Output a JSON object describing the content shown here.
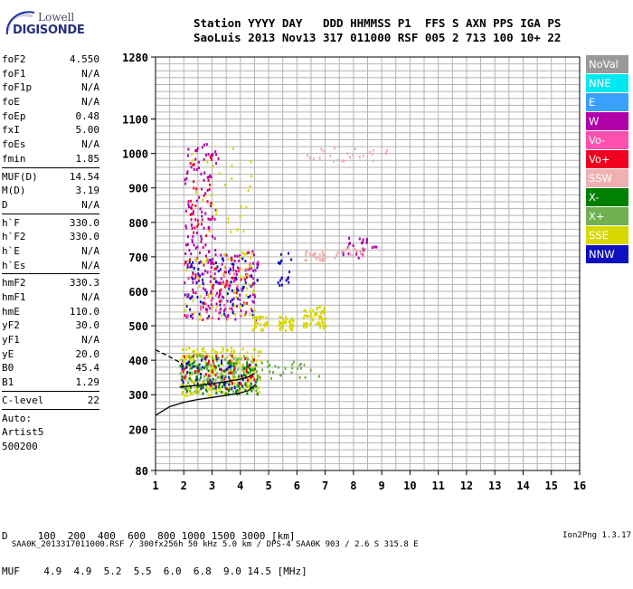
{
  "logo": {
    "line1": "Lowell",
    "line2": "DIGISONDE"
  },
  "header": {
    "row1": "Station YYYY DAY   DDD HHMMSS P1  FFS S AXN PPS IGA PS",
    "row2": "SaoLuis 2013 Nov13 317 011000 RSF 005 2 713 100 10+ 22"
  },
  "params": [
    {
      "name": "foF2",
      "value": "4.550"
    },
    {
      "name": "foF1",
      "value": "N/A"
    },
    {
      "name": "foF1p",
      "value": "N/A"
    },
    {
      "name": "foE",
      "value": "N/A"
    },
    {
      "name": "foEp",
      "value": "0.48"
    },
    {
      "name": "fxI",
      "value": "5.00"
    },
    {
      "name": "foEs",
      "value": "N/A"
    },
    {
      "name": "fmin",
      "value": "1.85"
    },
    {
      "name": "MUF(D)",
      "value": "14.54",
      "sep": true
    },
    {
      "name": "M(D)",
      "value": "3.19"
    },
    {
      "name": "D",
      "value": "N/A"
    },
    {
      "name": "h`F",
      "value": "330.0",
      "sep": true
    },
    {
      "name": "h`F2",
      "value": "330.0"
    },
    {
      "name": "h`E",
      "value": "N/A"
    },
    {
      "name": "h`Es",
      "value": "N/A"
    },
    {
      "name": "hmF2",
      "value": "330.3",
      "sep": true
    },
    {
      "name": "hmF1",
      "value": "N/A"
    },
    {
      "name": "hmE",
      "value": "110.0"
    },
    {
      "name": "yF2",
      "value": "30.0"
    },
    {
      "name": "yF1",
      "value": "N/A"
    },
    {
      "name": "yE",
      "value": "20.0"
    },
    {
      "name": "B0",
      "value": "45.4"
    },
    {
      "name": "B1",
      "value": "1.29"
    },
    {
      "name": "C-level",
      "value": "22",
      "sep": true
    }
  ],
  "auto": {
    "label": "Auto:",
    "artist": "Artist5",
    "version": "500200"
  },
  "legend": [
    {
      "label": "NoVal",
      "color": "#999999"
    },
    {
      "label": "NNE",
      "color": "#00e8f0"
    },
    {
      "label": "E",
      "color": "#3aa0ff"
    },
    {
      "label": "W",
      "color": "#b000a8"
    },
    {
      "label": "Vo-",
      "color": "#ff50b0"
    },
    {
      "label": "Vo+",
      "color": "#f00020"
    },
    {
      "label": "SSW",
      "color": "#f0b0b0"
    },
    {
      "label": "X-",
      "color": "#008000"
    },
    {
      "label": "X+",
      "color": "#70b050"
    },
    {
      "label": "SSE",
      "color": "#d8d800"
    },
    {
      "label": "NNW",
      "color": "#1010c0"
    }
  ],
  "bottom": {
    "d_line": "D     100  200  400  600  800 1000 1500 3000 [km]",
    "muf_line": "MUF    4.9  4.9  5.2  5.5  6.0  6.8  9.0 14.5 [MHz]"
  },
  "footer": {
    "text": "SAA0K_2013317011000.RSF / 300fx256h 50 kHz 5.0 km / DPS-4 SAA0K 903 / 2.6 S 315.8 E",
    "version": "Ion2Png 1.3.17"
  },
  "chart_data": {
    "type": "scatter",
    "title": "",
    "xlabel": "",
    "ylabel": "",
    "xlim": [
      1,
      16
    ],
    "ylim": [
      80,
      1280
    ],
    "xticks": [
      "1",
      "2",
      "3",
      "4",
      "5",
      "6",
      "7",
      "8",
      "9",
      "10",
      "11",
      "12",
      "13",
      "14",
      "15",
      "16"
    ],
    "yticks": [
      {
        "value": 80,
        "label": "80"
      },
      {
        "value": 200,
        "label": "200"
      },
      {
        "value": 300,
        "label": "300"
      },
      {
        "value": 400,
        "label": "400"
      },
      {
        "value": 500,
        "label": "500"
      },
      {
        "value": 600,
        "label": "600"
      },
      {
        "value": 700,
        "label": "700"
      },
      {
        "value": 800,
        "label": "800"
      },
      {
        "value": 900,
        "label": "900"
      },
      {
        "value": 1000,
        "label": "1000"
      },
      {
        "value": 1100,
        "label": "1100"
      },
      {
        "value": 1280,
        "label": "1280"
      }
    ],
    "grid": true,
    "profile": [
      [
        1.0,
        240
      ],
      [
        1.5,
        265
      ],
      [
        2.0,
        278
      ],
      [
        2.5,
        286
      ],
      [
        3.0,
        292
      ],
      [
        3.5,
        298
      ],
      [
        4.0,
        305
      ],
      [
        4.3,
        312
      ],
      [
        4.55,
        330
      ]
    ],
    "profile_dashed": [
      [
        1.0,
        430
      ],
      [
        1.5,
        410
      ],
      [
        1.9,
        392
      ],
      [
        2.0,
        380
      ]
    ],
    "trace": [
      [
        1.85,
        322
      ],
      [
        2.2,
        325
      ],
      [
        2.6,
        328
      ],
      [
        3.0,
        332
      ],
      [
        3.5,
        338
      ],
      [
        4.0,
        345
      ],
      [
        4.3,
        352
      ],
      [
        4.5,
        362
      ]
    ],
    "clusters": [
      {
        "color_index": 9,
        "x": [
          1.85,
          4.7
        ],
        "y": [
          300,
          440
        ],
        "n": 260
      },
      {
        "color_index": 8,
        "x": [
          1.85,
          4.6
        ],
        "y": [
          310,
          420
        ],
        "n": 120
      },
      {
        "color_index": 7,
        "x": [
          1.85,
          4.6
        ],
        "y": [
          300,
          400
        ],
        "n": 110
      },
      {
        "color_index": 5,
        "x": [
          1.9,
          4.5
        ],
        "y": [
          320,
          420
        ],
        "n": 50
      },
      {
        "color_index": 10,
        "x": [
          1.9,
          4.4
        ],
        "y": [
          320,
          410
        ],
        "n": 40
      },
      {
        "color_index": 3,
        "x": [
          2.0,
          4.6
        ],
        "y": [
          520,
          720
        ],
        "n": 160
      },
      {
        "color_index": 10,
        "x": [
          2.0,
          4.6
        ],
        "y": [
          530,
          700
        ],
        "n": 80
      },
      {
        "color_index": 9,
        "x": [
          2.0,
          4.5
        ],
        "y": [
          520,
          720
        ],
        "n": 70
      },
      {
        "color_index": 4,
        "x": [
          2.0,
          4.5
        ],
        "y": [
          520,
          700
        ],
        "n": 40
      },
      {
        "color_index": 5,
        "x": [
          2.0,
          4.5
        ],
        "y": [
          520,
          700
        ],
        "n": 30
      },
      {
        "color_index": 3,
        "x": [
          2.0,
          3.2
        ],
        "y": [
          720,
          1040
        ],
        "n": 90
      },
      {
        "color_index": 5,
        "x": [
          2.1,
          3.0
        ],
        "y": [
          750,
          1000
        ],
        "n": 30
      },
      {
        "color_index": 9,
        "x": [
          2.2,
          4.5
        ],
        "y": [
          760,
          1020
        ],
        "n": 30
      },
      {
        "color_index": 9,
        "x": [
          4.4,
          4.95
        ],
        "y": [
          490,
          530
        ],
        "n": 35
      },
      {
        "color_index": 9,
        "x": [
          5.3,
          5.85
        ],
        "y": [
          490,
          530
        ],
        "n": 45
      },
      {
        "color_index": 10,
        "x": [
          5.3,
          5.8
        ],
        "y": [
          620,
          720
        ],
        "n": 20
      },
      {
        "color_index": 9,
        "x": [
          6.2,
          7.0
        ],
        "y": [
          490,
          560
        ],
        "n": 60
      },
      {
        "color_index": 6,
        "x": [
          6.2,
          7.0
        ],
        "y": [
          690,
          720
        ],
        "n": 30
      },
      {
        "color_index": 3,
        "x": [
          7.6,
          8.8
        ],
        "y": [
          700,
          760
        ],
        "n": 25
      },
      {
        "color_index": 6,
        "x": [
          7.3,
          8.4
        ],
        "y": [
          700,
          730
        ],
        "n": 20
      },
      {
        "color_index": 6,
        "x": [
          6.3,
          9.2
        ],
        "y": [
          980,
          1020
        ],
        "n": 25
      },
      {
        "color_index": 8,
        "x": [
          4.4,
          6.8
        ],
        "y": [
          350,
          400
        ],
        "n": 30
      }
    ]
  }
}
